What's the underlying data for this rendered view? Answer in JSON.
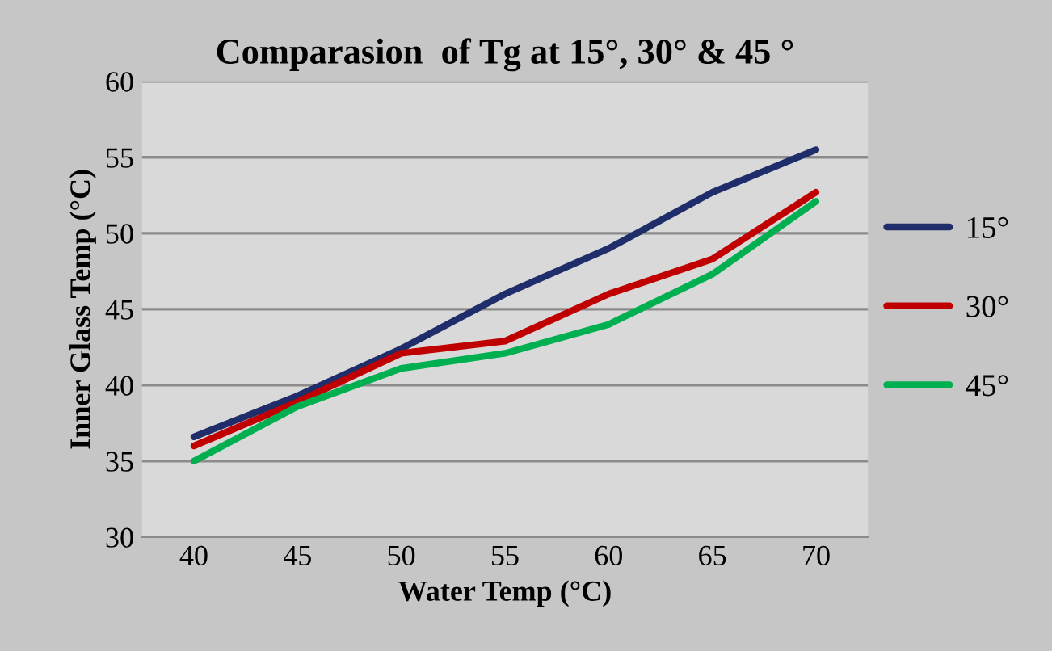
{
  "chart_data": {
    "type": "line",
    "title": "Comparasion  of Tg at 15°, 30° & 45 °",
    "xlabel": "Water Temp (°C)",
    "ylabel": "Inner Glass Temp (°C)",
    "categories": [
      "40",
      "45",
      "50",
      "55",
      "60",
      "65",
      "70"
    ],
    "series": [
      {
        "name": "15°",
        "color": "#1f2d6b",
        "values": [
          36.6,
          39.3,
          42.4,
          46,
          49,
          52.7,
          55.5
        ]
      },
      {
        "name": "30°",
        "color": "#c00000",
        "values": [
          36.0,
          38.9,
          42.1,
          42.9,
          46,
          48.3,
          52.7
        ]
      },
      {
        "name": "45°",
        "color": "#00b050",
        "values": [
          35.0,
          38.6,
          41.1,
          42.1,
          44,
          47.3,
          52.1
        ]
      }
    ],
    "ylim": [
      30,
      60
    ],
    "yticks": [
      30,
      35,
      40,
      45,
      50,
      55,
      60
    ],
    "grid": "y",
    "legend": "right",
    "marker": "none",
    "line_style": "solid"
  }
}
